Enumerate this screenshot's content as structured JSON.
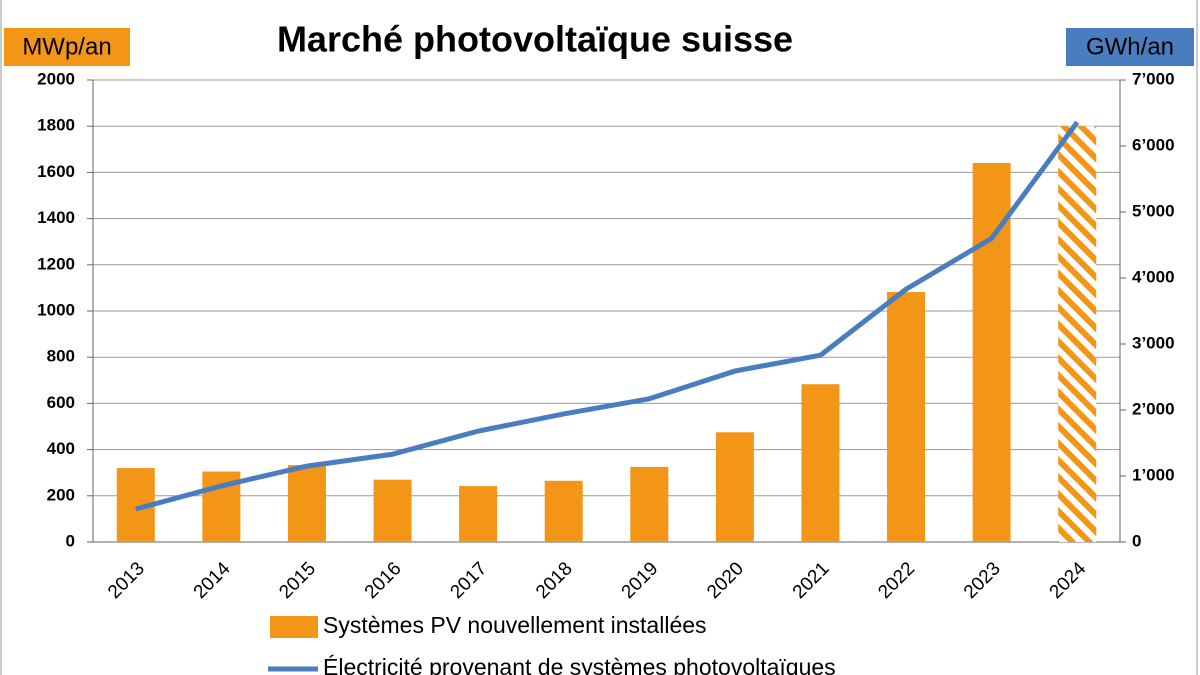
{
  "chart_data": {
    "type": "bar-line",
    "title": "Marché photovoltaïque suisse",
    "y_label": "MWp/an",
    "y2_label": "GWh/an",
    "categories": [
      "2013",
      "2014",
      "2015",
      "2016",
      "2017",
      "2018",
      "2019",
      "2020",
      "2021",
      "2022",
      "2023",
      "2024"
    ],
    "series": [
      {
        "name": "Systèmes PV nouvellement installées",
        "type": "bar",
        "color": "#f39517",
        "values": [
          320,
          305,
          333,
          270,
          242,
          265,
          325,
          475,
          683,
          1082,
          1641,
          1800
        ],
        "hatched": [
          false,
          false,
          false,
          false,
          false,
          false,
          false,
          false,
          false,
          false,
          false,
          true
        ]
      },
      {
        "name": "Électricité provenant de systèmes photovoltaïques",
        "type": "line",
        "axis": "y2",
        "color": "#4a7dbf",
        "values": [
          500,
          850,
          1150,
          1330,
          1680,
          1940,
          2170,
          2590,
          2830,
          3830,
          4600,
          6360
        ]
      }
    ],
    "ylim": [
      0,
      2000
    ],
    "yticks": [
      0,
      200,
      400,
      600,
      800,
      1000,
      1200,
      1400,
      1600,
      1800,
      2000
    ],
    "y2lim": [
      0,
      7000
    ],
    "y2ticks": [
      0,
      {
        "value": 1000,
        "label": "1’000"
      },
      {
        "value": 2000,
        "label": "2’000"
      },
      {
        "value": 3000,
        "label": "3’000"
      },
      {
        "value": 4000,
        "label": "4’000"
      },
      {
        "value": 5000,
        "label": "5’000"
      },
      {
        "value": 6000,
        "label": "6’000"
      },
      {
        "value": 7000,
        "label": "7’000"
      }
    ],
    "grid": true
  }
}
